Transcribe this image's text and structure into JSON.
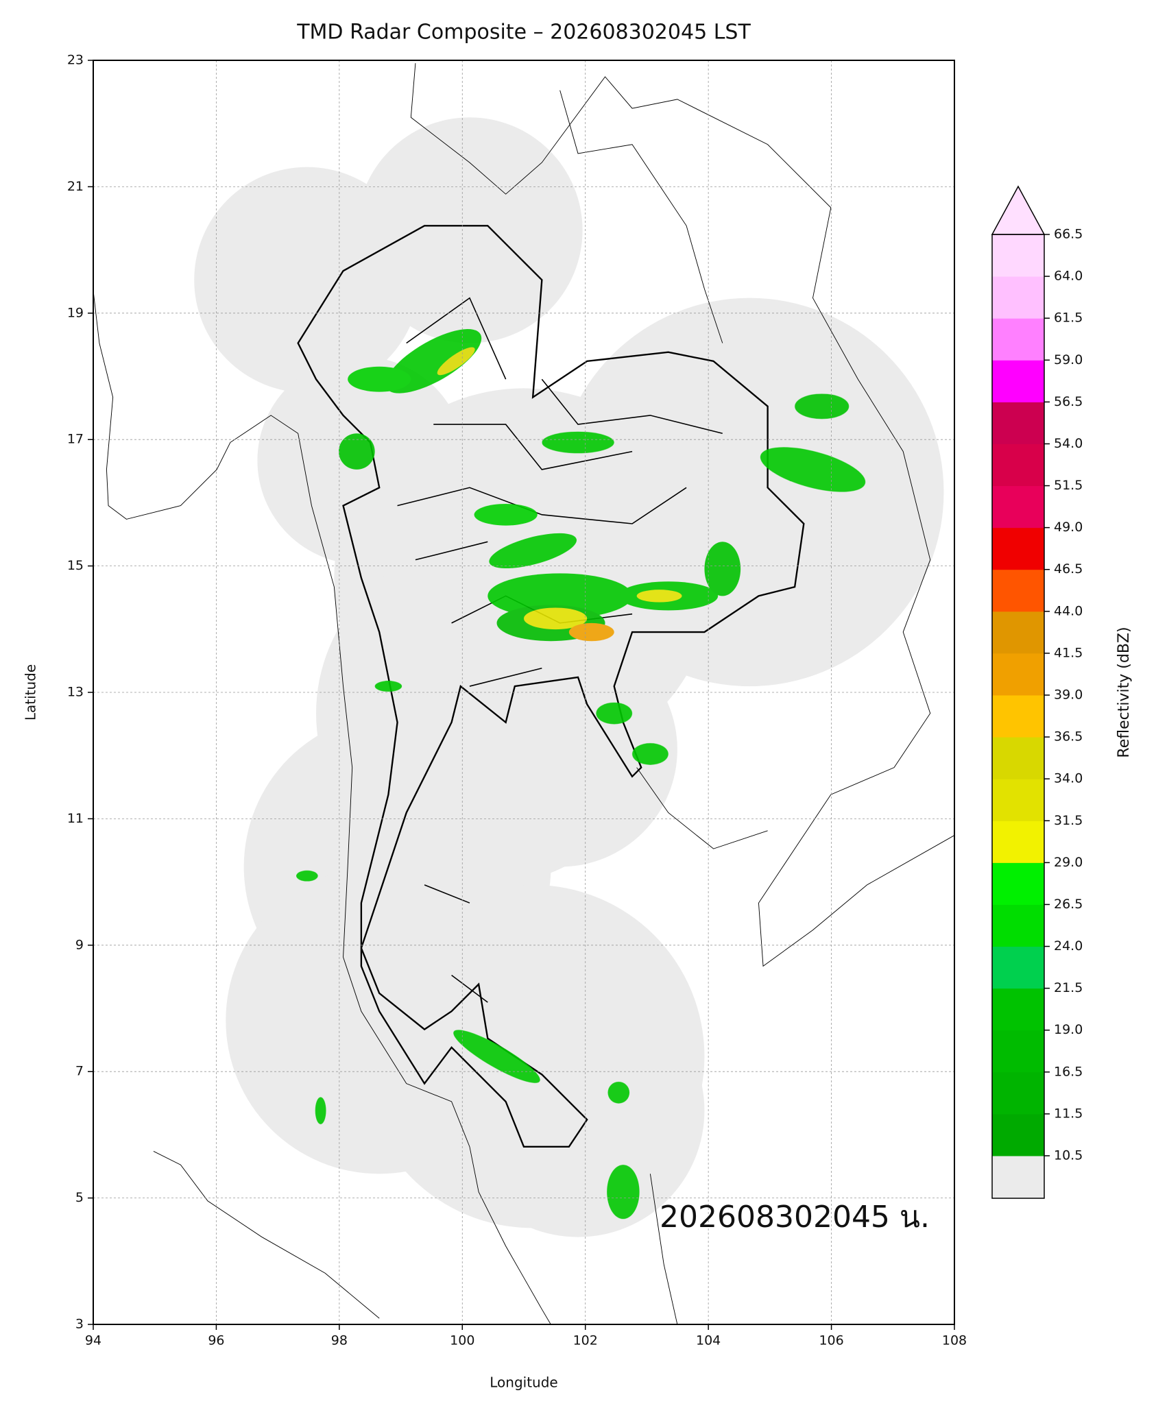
{
  "map": {
    "title": "TMD Radar Composite – 202608302045 LST",
    "annotation": "202608302045 น.",
    "xlabel": "Longitude",
    "ylabel": "Latitude",
    "xlim": [
      94,
      108
    ],
    "ylim": [
      3,
      23
    ],
    "xticks": [
      94,
      96,
      98,
      100,
      102,
      104,
      106,
      108
    ],
    "yticks": [
      3,
      5,
      7,
      9,
      11,
      13,
      15,
      17,
      19,
      21,
      23
    ],
    "grid": true,
    "colorbar": {
      "label": "Reflectivity (dBZ)",
      "ticks": [
        10.5,
        11.5,
        16.5,
        {
          "value": 19,
          "label": "19.0"
        },
        21.5,
        {
          "value": 24,
          "label": "24.0"
        },
        26.5,
        {
          "value": 29,
          "label": "29.0"
        },
        31.5,
        {
          "value": 34,
          "label": "34.0"
        },
        36.5,
        {
          "value": 39,
          "label": "39.0"
        },
        41.5,
        {
          "value": 44,
          "label": "44.0"
        },
        46.5,
        {
          "value": 49,
          "label": "49.0"
        },
        51.5,
        {
          "value": 54,
          "label": "54.0"
        },
        56.5,
        {
          "value": 59,
          "label": "59.0"
        },
        61.5,
        {
          "value": 64,
          "label": "64.0"
        },
        66.5
      ],
      "colors": [
        "#00aa00",
        "#00b400",
        "#00bb00",
        "#00c200",
        "#00d04e",
        "#00dd00",
        "#00f000",
        "#f2f200",
        "#e2e200",
        "#d8d800",
        "#ffc400",
        "#f0a000",
        "#e09600",
        "#ff5500",
        "#f00000",
        "#e8005a",
        "#d8004a",
        "#cc0050",
        "#ff00ff",
        "#ff80ff",
        "#ffc0ff",
        "#ffd8ff"
      ],
      "under_color": "#ebebeb",
      "over_color": "#ffe0ff"
    }
  }
}
